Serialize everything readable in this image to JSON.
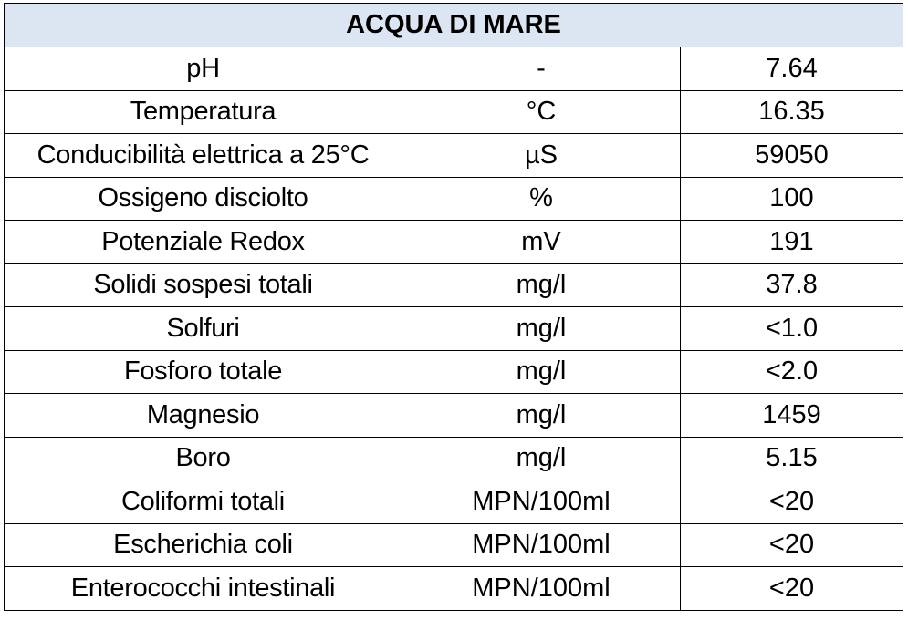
{
  "table": {
    "title": "ACQUA DI MARE",
    "rows": [
      {
        "parameter": "pH",
        "unit": "-",
        "value": "7.64"
      },
      {
        "parameter": "Temperatura",
        "unit": "°C",
        "value": "16.35"
      },
      {
        "parameter": "Conducibilità elettrica a 25°C",
        "unit": "µS",
        "value": "59050"
      },
      {
        "parameter": "Ossigeno disciolto",
        "unit": "%",
        "value": "100"
      },
      {
        "parameter": "Potenziale Redox",
        "unit": "mV",
        "value": "191"
      },
      {
        "parameter": "Solidi sospesi totali",
        "unit": "mg/l",
        "value": "37.8"
      },
      {
        "parameter": "Solfuri",
        "unit": "mg/l",
        "value": "<1.0"
      },
      {
        "parameter": "Fosforo totale",
        "unit": "mg/l",
        "value": "<2.0"
      },
      {
        "parameter": "Magnesio",
        "unit": "mg/l",
        "value": "1459"
      },
      {
        "parameter": "Boro",
        "unit": "mg/l",
        "value": "5.15"
      },
      {
        "parameter": "Coliformi totali",
        "unit": "MPN/100ml",
        "value": "<20"
      },
      {
        "parameter": "Escherichia coli",
        "unit": "MPN/100ml",
        "value": "<20"
      },
      {
        "parameter": "Enterococchi intestinali",
        "unit": "MPN/100ml",
        "value": "<20"
      }
    ]
  },
  "colors": {
    "header_background": "#dce6f2",
    "border": "#000000",
    "text": "#000000"
  }
}
